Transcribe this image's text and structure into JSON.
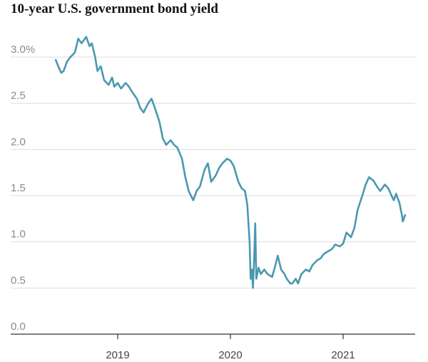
{
  "chart_data": {
    "type": "line",
    "title": "10-year U.S. government bond yield",
    "xlabel": "",
    "ylabel": "",
    "ylim": [
      0,
      3.0
    ],
    "y_ticks": [
      {
        "value": 0.0,
        "label": "0.0"
      },
      {
        "value": 0.5,
        "label": "0.5"
      },
      {
        "value": 1.0,
        "label": "1.0"
      },
      {
        "value": 1.5,
        "label": "1.5"
      },
      {
        "value": 2.0,
        "label": "2.0"
      },
      {
        "value": 2.5,
        "label": "2.5"
      },
      {
        "value": 3.0,
        "label": "3.0%"
      }
    ],
    "x_ticks": [
      {
        "value": 2019,
        "label": "2019"
      },
      {
        "value": 2020,
        "label": "2020"
      },
      {
        "value": 2021,
        "label": "2021"
      }
    ],
    "grid": true,
    "color": "#4a98b0",
    "series": [
      {
        "x": [
          2018.45,
          2018.48,
          2018.5,
          2018.52,
          2018.55,
          2018.58,
          2018.62,
          2018.65,
          2018.68,
          2018.72,
          2018.75,
          2018.77,
          2018.8,
          2018.82,
          2018.85,
          2018.88,
          2018.92,
          2018.95,
          2018.97,
          2019.0,
          2019.03,
          2019.07,
          2019.1,
          2019.13,
          2019.17,
          2019.2,
          2019.23,
          2019.27,
          2019.3,
          2019.33,
          2019.37,
          2019.4,
          2019.43,
          2019.47,
          2019.5,
          2019.53,
          2019.57,
          2019.6,
          2019.63,
          2019.67,
          2019.7,
          2019.73,
          2019.77,
          2019.8,
          2019.83,
          2019.87,
          2019.9,
          2019.93,
          2019.97,
          2020.0,
          2020.03,
          2020.07,
          2020.1,
          2020.13,
          2020.15,
          2020.17,
          2020.18,
          2020.19,
          2020.2,
          2020.21,
          2020.22,
          2020.23,
          2020.25,
          2020.27,
          2020.3,
          2020.33,
          2020.37,
          2020.4,
          2020.42,
          2020.45,
          2020.48,
          2020.5,
          2020.53,
          2020.55,
          2020.58,
          2020.6,
          2020.63,
          2020.67,
          2020.7,
          2020.73,
          2020.77,
          2020.8,
          2020.83,
          2020.87,
          2020.9,
          2020.93,
          2020.97,
          2021.0,
          2021.03,
          2021.07,
          2021.1,
          2021.13,
          2021.17,
          2021.2,
          2021.23,
          2021.27,
          2021.3,
          2021.33,
          2021.37,
          2021.4,
          2021.43,
          2021.45,
          2021.47,
          2021.5,
          2021.52,
          2021.53,
          2021.55
        ],
        "y": [
          2.97,
          2.88,
          2.83,
          2.85,
          2.95,
          3.0,
          3.05,
          3.2,
          3.15,
          3.22,
          3.12,
          3.15,
          3.0,
          2.85,
          2.9,
          2.75,
          2.7,
          2.78,
          2.68,
          2.72,
          2.66,
          2.72,
          2.68,
          2.62,
          2.55,
          2.45,
          2.4,
          2.5,
          2.55,
          2.45,
          2.3,
          2.12,
          2.05,
          2.1,
          2.05,
          2.02,
          1.9,
          1.7,
          1.55,
          1.45,
          1.55,
          1.6,
          1.78,
          1.85,
          1.65,
          1.72,
          1.8,
          1.85,
          1.9,
          1.88,
          1.82,
          1.65,
          1.58,
          1.55,
          1.4,
          1.0,
          0.6,
          0.7,
          0.5,
          0.8,
          1.2,
          0.6,
          0.72,
          0.65,
          0.7,
          0.65,
          0.62,
          0.75,
          0.85,
          0.7,
          0.65,
          0.6,
          0.55,
          0.55,
          0.6,
          0.55,
          0.65,
          0.7,
          0.68,
          0.75,
          0.8,
          0.82,
          0.87,
          0.9,
          0.92,
          0.97,
          0.95,
          0.98,
          1.1,
          1.05,
          1.15,
          1.35,
          1.5,
          1.62,
          1.7,
          1.66,
          1.6,
          1.55,
          1.62,
          1.58,
          1.5,
          1.45,
          1.52,
          1.42,
          1.3,
          1.22,
          1.29
        ]
      }
    ]
  }
}
